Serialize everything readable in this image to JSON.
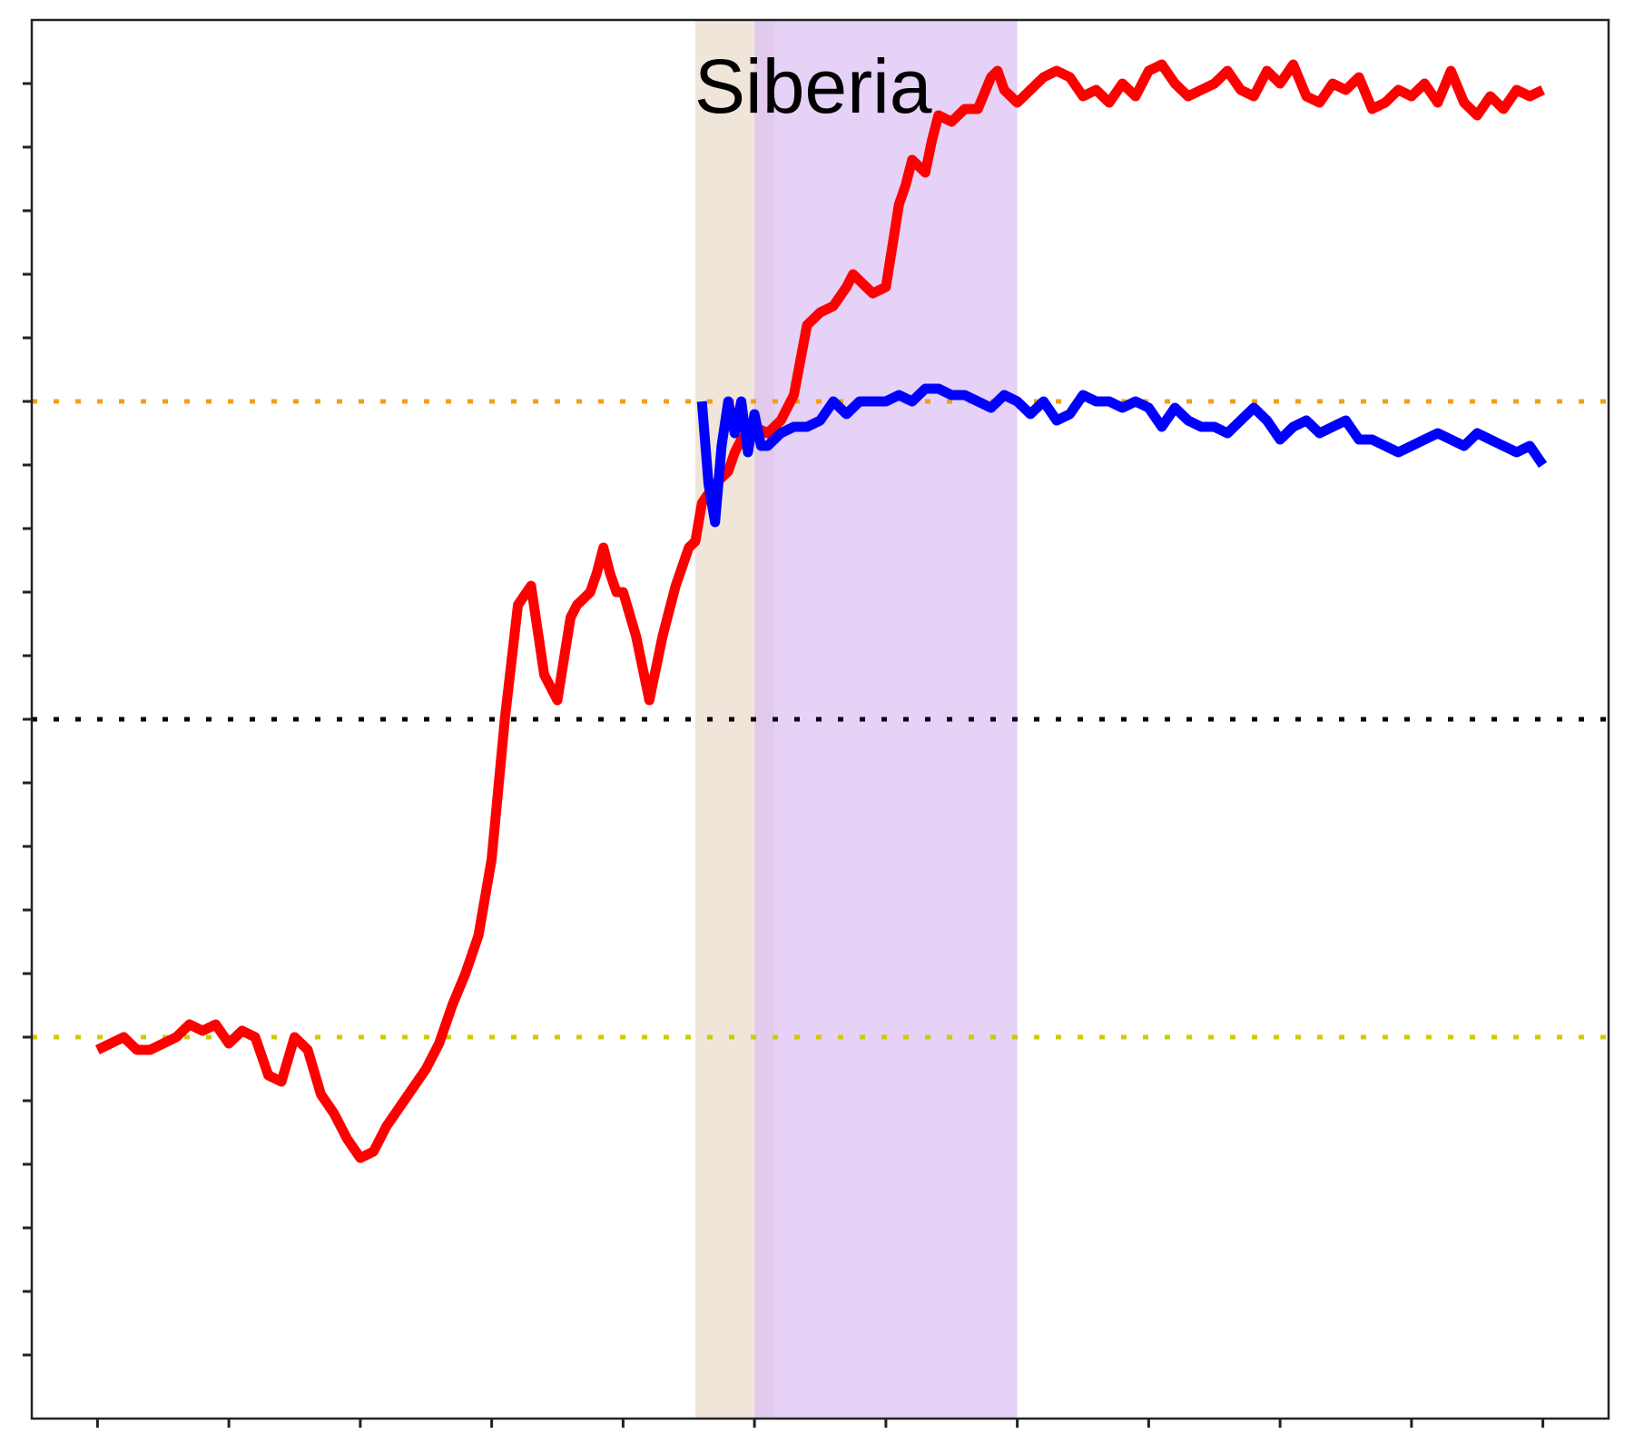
{
  "chart_data": {
    "type": "line",
    "title": "Siberia",
    "xlabel": "",
    "ylabel": "",
    "xlim": [
      -0.5,
      11.5
    ],
    "ylim": [
      -22,
      0
    ],
    "x_ticks": [
      0,
      1,
      2,
      3,
      4,
      5,
      6,
      7,
      8,
      9,
      10,
      11
    ],
    "y_ticks": [
      -21,
      -20,
      -19,
      -18,
      -17,
      -16,
      -15,
      -14,
      -13,
      -12,
      -11,
      -10,
      -9,
      -8,
      -7,
      -6,
      -5,
      -4,
      -3,
      -2,
      -1
    ],
    "grid": false,
    "legend": "none",
    "shaded_regions": [
      {
        "x0": 4.55,
        "x1": 5.15,
        "color": "#ebe0cf",
        "opacity": 0.8
      },
      {
        "x0": 5.0,
        "x1": 7.0,
        "color": "#dcbdf3",
        "opacity": 0.7
      }
    ],
    "reference_lines": [
      {
        "y": -6,
        "color": "#f0a018"
      },
      {
        "y": -11,
        "color": "#000000"
      },
      {
        "y": -16,
        "color": "#cccc00"
      }
    ],
    "series": [
      {
        "color": "#ff0000",
        "x": [
          0.0,
          0.1,
          0.2,
          0.3,
          0.4,
          0.5,
          0.6,
          0.7,
          0.8,
          0.9,
          1.0,
          1.1,
          1.2,
          1.3,
          1.4,
          1.5,
          1.6,
          1.7,
          1.8,
          1.9,
          2.0,
          2.1,
          2.2,
          2.3,
          2.4,
          2.5,
          2.6,
          2.7,
          2.8,
          2.9,
          3.0,
          3.1,
          3.2,
          3.3,
          3.4,
          3.5,
          3.6,
          3.65,
          3.7,
          3.75,
          3.8,
          3.85,
          3.9,
          3.95,
          4.0,
          4.1,
          4.2,
          4.3,
          4.35,
          4.4,
          4.5,
          4.55,
          4.6,
          4.7,
          4.75,
          4.8,
          4.85,
          4.9,
          5.0,
          5.1,
          5.2,
          5.3,
          5.4,
          5.5,
          5.6,
          5.7,
          5.75,
          5.8,
          5.9,
          6.0,
          6.1,
          6.15,
          6.2,
          6.3,
          6.35,
          6.4,
          6.5,
          6.6,
          6.7,
          6.8,
          6.85,
          6.9,
          6.95,
          7.0,
          7.05,
          7.1,
          7.15,
          7.2,
          7.3,
          7.4,
          7.5,
          7.6,
          7.7,
          7.8,
          7.9,
          8.0,
          8.1,
          8.2,
          8.3,
          8.4,
          8.5,
          8.6,
          8.7,
          8.8,
          8.9,
          9.0,
          9.1,
          9.2,
          9.3,
          9.4,
          9.5,
          9.6,
          9.7,
          9.8,
          9.9,
          10.0,
          10.1,
          10.2,
          10.3,
          10.4,
          10.5,
          10.6,
          10.7,
          10.8,
          10.9,
          11.0
        ],
        "values": [
          -16.2,
          -16.1,
          -16.0,
          -16.2,
          -16.2,
          -16.1,
          -16.0,
          -15.8,
          -15.9,
          -15.8,
          -16.1,
          -15.9,
          -16.0,
          -16.6,
          -16.7,
          -16.0,
          -16.2,
          -16.9,
          -17.2,
          -17.6,
          -17.9,
          -17.8,
          -17.4,
          -17.1,
          -16.8,
          -16.5,
          -16.1,
          -15.5,
          -15.0,
          -14.4,
          -13.2,
          -11.0,
          -9.2,
          -8.9,
          -10.3,
          -10.7,
          -9.4,
          -9.2,
          -9.1,
          -9.0,
          -8.7,
          -8.3,
          -8.7,
          -9.0,
          -9.0,
          -9.7,
          -10.7,
          -9.7,
          -9.3,
          -8.9,
          -8.3,
          -8.2,
          -7.6,
          -7.3,
          -7.2,
          -7.1,
          -6.8,
          -6.6,
          -6.4,
          -6.5,
          -6.3,
          -5.9,
          -4.8,
          -4.6,
          -4.5,
          -4.2,
          -4.0,
          -4.1,
          -4.3,
          -4.2,
          -2.9,
          -2.6,
          -2.2,
          -2.4,
          -1.9,
          -1.5,
          -1.6,
          -1.4,
          -1.4,
          -0.9,
          -0.8,
          -1.1,
          -1.2,
          -1.3,
          -1.2,
          -1.1,
          -1.0,
          -0.9,
          -0.8,
          -0.9,
          -1.2,
          -1.1,
          -1.3,
          -1.0,
          -1.2,
          -0.8,
          -0.7,
          -1.0,
          -1.2,
          -1.1,
          -1.0,
          -0.8,
          -1.1,
          -1.2,
          -0.8,
          -1.0,
          -0.7,
          -1.2,
          -1.3,
          -1.0,
          -1.1,
          -0.9,
          -1.4,
          -1.3,
          -1.1,
          -1.2,
          -1.0,
          -1.3,
          -0.8,
          -1.3,
          -1.5,
          -1.2,
          -1.4,
          -1.1,
          -1.2,
          -1.1
        ]
      },
      {
        "color": "#0000ff",
        "x": [
          4.6,
          4.65,
          4.7,
          4.75,
          4.8,
          4.85,
          4.9,
          4.95,
          5.0,
          5.05,
          5.1,
          5.2,
          5.3,
          5.4,
          5.5,
          5.6,
          5.7,
          5.8,
          5.9,
          6.0,
          6.1,
          6.2,
          6.3,
          6.4,
          6.5,
          6.6,
          6.7,
          6.8,
          6.9,
          7.0,
          7.1,
          7.2,
          7.3,
          7.4,
          7.5,
          7.6,
          7.7,
          7.8,
          7.9,
          8.0,
          8.1,
          8.2,
          8.3,
          8.4,
          8.5,
          8.6,
          8.7,
          8.8,
          8.9,
          9.0,
          9.1,
          9.2,
          9.3,
          9.4,
          9.5,
          9.6,
          9.7,
          9.8,
          9.9,
          10.0,
          10.1,
          10.2,
          10.3,
          10.4,
          10.5,
          10.6,
          10.7,
          10.8,
          10.9,
          11.0
        ],
        "values": [
          -6.0,
          -7.3,
          -7.9,
          -6.7,
          -6.0,
          -6.5,
          -6.0,
          -6.8,
          -6.2,
          -6.7,
          -6.7,
          -6.5,
          -6.4,
          -6.4,
          -6.3,
          -6.0,
          -6.2,
          -6.0,
          -6.0,
          -6.0,
          -5.9,
          -6.0,
          -5.8,
          -5.8,
          -5.9,
          -5.9,
          -6.0,
          -6.1,
          -5.9,
          -6.0,
          -6.2,
          -6.0,
          -6.3,
          -6.2,
          -5.9,
          -6.0,
          -6.0,
          -6.1,
          -6.0,
          -6.1,
          -6.4,
          -6.1,
          -6.3,
          -6.4,
          -6.4,
          -6.5,
          -6.3,
          -6.1,
          -6.3,
          -6.6,
          -6.4,
          -6.3,
          -6.5,
          -6.4,
          -6.3,
          -6.6,
          -6.6,
          -6.7,
          -6.8,
          -6.7,
          -6.6,
          -6.5,
          -6.6,
          -6.7,
          -6.5,
          -6.6,
          -6.7,
          -6.8,
          -6.7,
          -7.0
        ]
      }
    ]
  }
}
